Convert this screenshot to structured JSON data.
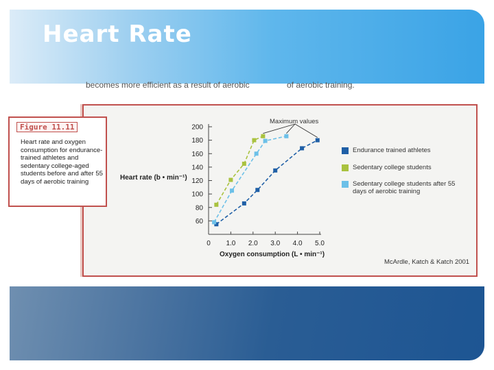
{
  "slide": {
    "title": "Heart Rate",
    "cutoff_text_left": "becomes more efficient as a result of aerobic",
    "cutoff_text_right": "of aerobic training."
  },
  "figure": {
    "label": "Figure 11.11",
    "caption": "Heart rate and oxygen consumption for endurance-trained athletes and sedentary college-aged students before and after 55 days of aerobic training",
    "credit": "McArdle, Katch & Katch 2001",
    "annotation": "Maximum values"
  },
  "colors": {
    "endurance": "#1f5fa6",
    "sedentary": "#a9c23f",
    "after_training": "#6cc0e8",
    "accent": "#c0504d"
  },
  "chart_data": {
    "type": "scatter",
    "xlabel": "Oxygen consumption (L • min⁻¹)",
    "ylabel": "Heart rate (b • min⁻¹)",
    "xlim": [
      0,
      5.0
    ],
    "ylim": [
      40,
      200
    ],
    "xticks": [
      "0",
      "1.0",
      "2.0",
      "3.0",
      "4.0",
      "5.0"
    ],
    "xtick_values": [
      0,
      1,
      2,
      3,
      4,
      5
    ],
    "yticks": [
      "60",
      "80",
      "100",
      "120",
      "140",
      "160",
      "180",
      "200"
    ],
    "ytick_values": [
      60,
      80,
      100,
      120,
      140,
      160,
      180,
      200
    ],
    "series": [
      {
        "name": "Endurance trained athletes",
        "color_key": "endurance",
        "points": [
          [
            0.35,
            55
          ],
          [
            1.6,
            86
          ],
          [
            2.2,
            106
          ],
          [
            3.0,
            135
          ],
          [
            4.2,
            168
          ],
          [
            4.9,
            180
          ]
        ]
      },
      {
        "name": "Sedentary college students",
        "color_key": "sedentary",
        "points": [
          [
            0.35,
            84
          ],
          [
            1.0,
            121
          ],
          [
            1.6,
            145
          ],
          [
            2.05,
            180
          ],
          [
            2.45,
            186
          ]
        ]
      },
      {
        "name": "Sedentary college students after 55 days of aerobic training",
        "color_key": "after_training",
        "points": [
          [
            0.25,
            58
          ],
          [
            1.05,
            105
          ],
          [
            2.15,
            160
          ],
          [
            2.55,
            179
          ],
          [
            3.5,
            186
          ]
        ]
      }
    ]
  }
}
